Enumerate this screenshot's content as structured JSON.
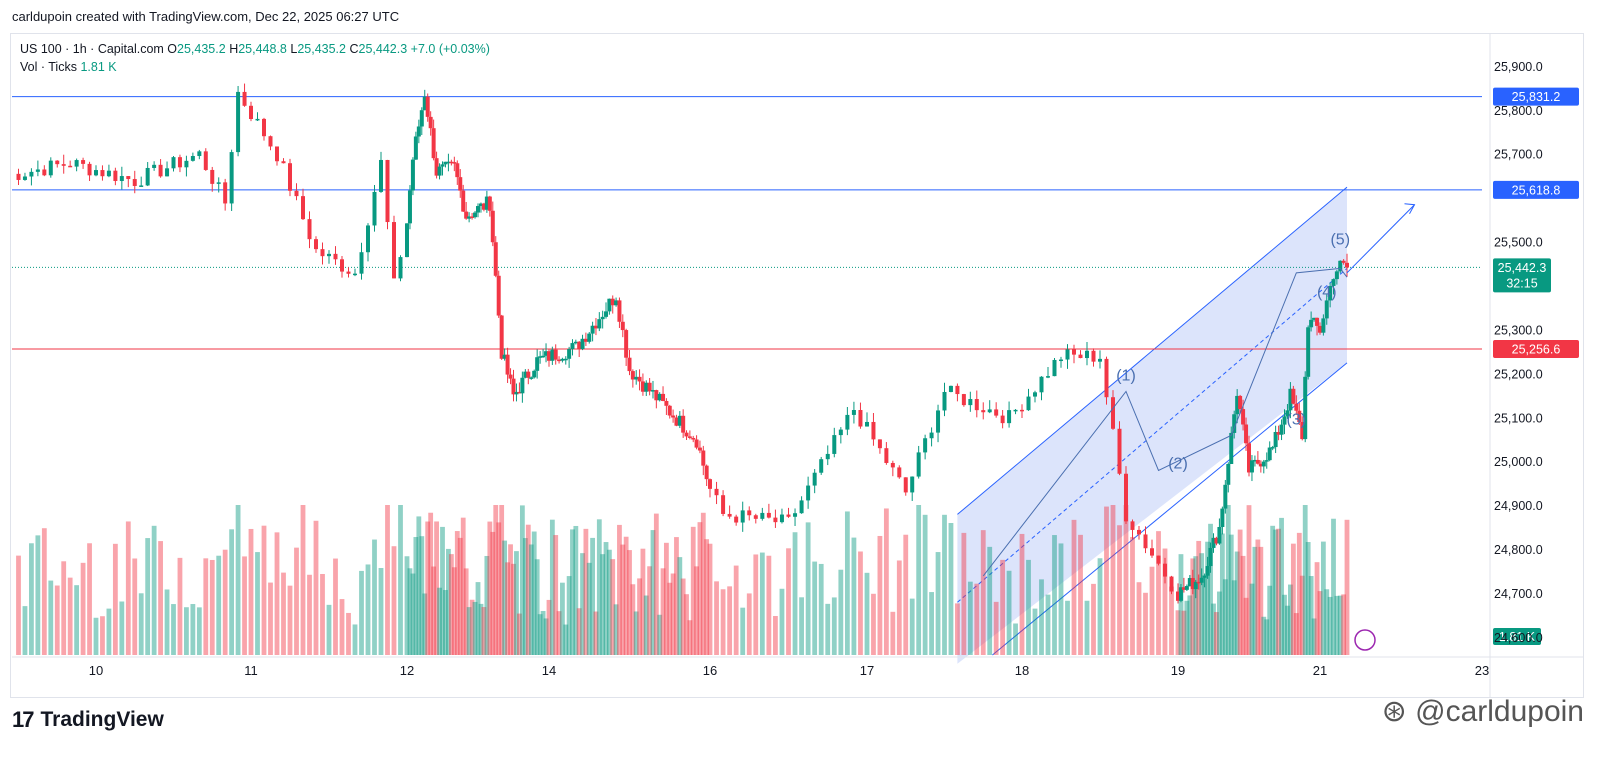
{
  "header": {
    "note": "carldupoin created with TradingView.com, Dec 22, 2025 06:27 UTC"
  },
  "legend": {
    "symbol": "US 100 · 1h · Capital.com",
    "open_label": "O",
    "open": "25,435.2",
    "high_label": "H",
    "high": "25,448.8",
    "low_label": "L",
    "low": "25,435.2",
    "close_label": "C",
    "close": "25,442.3",
    "change": "+7.0 (+0.03%)",
    "vol_label": "Vol · Ticks",
    "vol_value": "1.81 K"
  },
  "footer": {
    "brand": "TradingView",
    "watermark": "@carldupoin",
    "watermark_icon": "weibo-icon"
  },
  "colors": {
    "up": "#089981",
    "down": "#f23645",
    "level_blue": "#2962ff",
    "level_red": "#f23645",
    "channel_fill": "#bfcdf7"
  },
  "chart_data": {
    "type": "candlestick",
    "x_tick_labels": [
      "10",
      "11",
      "12",
      "14",
      "16",
      "17",
      "18",
      "19",
      "21",
      "23"
    ],
    "y_tick_labels": [
      "25,900.0",
      "25,800.0",
      "25,700.0",
      "25,500.0",
      "25,300.0",
      "25,200.0",
      "25,100.0",
      "25,000.0",
      "24,900.0",
      "24,800.0",
      "24,700.0",
      "24,600.0"
    ],
    "y_ticks": [
      25900,
      25800,
      25700,
      25500,
      25300,
      25200,
      25100,
      25000,
      24900,
      24800,
      24700,
      24600
    ],
    "ylim": [
      24560,
      25960
    ],
    "price_levels": [
      {
        "value": 25831.2,
        "label": "25,831.2",
        "color": "#2962ff"
      },
      {
        "value": 25618.8,
        "label": "25,618.8",
        "color": "#2962ff"
      },
      {
        "value": 25256.6,
        "label": "25,256.6",
        "color": "#f23645"
      }
    ],
    "last_price": {
      "value": 25442.3,
      "label": "25,442.3",
      "countdown": "32:15"
    },
    "volume_label": "1.81 K",
    "wave_labels": [
      "(1)",
      "(2)",
      "(3)",
      "(4)",
      "(5)"
    ],
    "wave_points": [
      {
        "date": "2025-12-17 18:00",
        "price": 24740
      },
      {
        "date": "2025-12-18 16:00",
        "price": 25160
      },
      {
        "date": "2025-12-18 21:00",
        "price": 24980
      },
      {
        "date": "2025-12-19 18:00",
        "price": 25060
      },
      {
        "date": "2025-12-20 16:00",
        "price": 25430
      },
      {
        "date": "2025-12-21 06:00",
        "price": 25440
      },
      {
        "date": "2025-12-21 08:00",
        "price": 25420
      }
    ],
    "channel": {
      "lower": [
        {
          "date": "2025-12-17 14:00",
          "price": 24880
        },
        {
          "date": "2025-12-21 08:00",
          "price": 25625
        }
      ],
      "upper": [
        {
          "date": "2025-12-17 14:00",
          "price": 24880
        },
        {
          "date": "2025-12-21 08:00",
          "price": 25625
        }
      ]
    },
    "anchors": [
      {
        "date": "2025-12-09 10:00",
        "price": 25650
      },
      {
        "date": "2025-12-09 20:00",
        "price": 25680
      },
      {
        "date": "2025-12-10 06:00",
        "price": 25640
      },
      {
        "date": "2025-12-10 16:00",
        "price": 25700
      },
      {
        "date": "2025-12-10 20:00",
        "price": 25590
      },
      {
        "date": "2025-12-10 22:00",
        "price": 25840
      },
      {
        "date": "2025-12-11 04:00",
        "price": 25700
      },
      {
        "date": "2025-12-11 10:00",
        "price": 25480
      },
      {
        "date": "2025-12-11 16:00",
        "price": 25430
      },
      {
        "date": "2025-12-11 20:00",
        "price": 25680
      },
      {
        "date": "2025-12-11 22:00",
        "price": 25400
      },
      {
        "date": "2025-12-12 02:00",
        "price": 25690
      },
      {
        "date": "2025-12-12 06:00",
        "price": 25840
      },
      {
        "date": "2025-12-12 10:00",
        "price": 25660
      },
      {
        "date": "2025-12-12 16:00",
        "price": 25670
      },
      {
        "date": "2025-12-12 20:00",
        "price": 25560
      },
      {
        "date": "2025-12-13 04:00",
        "price": 25590
      },
      {
        "date": "2025-12-13 08:00",
        "price": 25250
      },
      {
        "date": "2025-12-13 12:00",
        "price": 25150
      },
      {
        "date": "2025-12-13 20:00",
        "price": 25230
      },
      {
        "date": "2025-12-14 08:00",
        "price": 25260
      },
      {
        "date": "2025-12-14 20:00",
        "price": 25380
      },
      {
        "date": "2025-12-15 00:00",
        "price": 25210
      },
      {
        "date": "2025-12-15 10:00",
        "price": 25130
      },
      {
        "date": "2025-12-15 20:00",
        "price": 25050
      },
      {
        "date": "2025-12-16 02:00",
        "price": 24880
      },
      {
        "date": "2025-12-16 12:00",
        "price": 24860
      },
      {
        "date": "2025-12-16 22:00",
        "price": 25120
      },
      {
        "date": "2025-12-17 06:00",
        "price": 24930
      },
      {
        "date": "2025-12-17 12:00",
        "price": 25160
      },
      {
        "date": "2025-12-17 22:00",
        "price": 25100
      },
      {
        "date": "2025-12-18 06:00",
        "price": 25240
      },
      {
        "date": "2025-12-18 12:00",
        "price": 25240
      },
      {
        "date": "2025-12-18 16:00",
        "price": 24880
      },
      {
        "date": "2025-12-19 00:00",
        "price": 24700
      },
      {
        "date": "2025-12-19 08:00",
        "price": 24740
      },
      {
        "date": "2025-12-19 14:00",
        "price": 24850
      },
      {
        "date": "2025-12-19 20:00",
        "price": 25160
      },
      {
        "date": "2025-12-20 00:00",
        "price": 24980
      },
      {
        "date": "2025-12-20 08:00",
        "price": 25030
      },
      {
        "date": "2025-12-20 14:00",
        "price": 25150
      },
      {
        "date": "2025-12-20 18:00",
        "price": 25060
      },
      {
        "date": "2025-12-20 20:00",
        "price": 25320
      },
      {
        "date": "2025-12-21 00:00",
        "price": 25300
      },
      {
        "date": "2025-12-21 04:00",
        "price": 25430
      },
      {
        "date": "2025-12-21 06:00",
        "price": 25445
      },
      {
        "date": "2025-12-21 08:00",
        "price": 25442
      }
    ]
  }
}
